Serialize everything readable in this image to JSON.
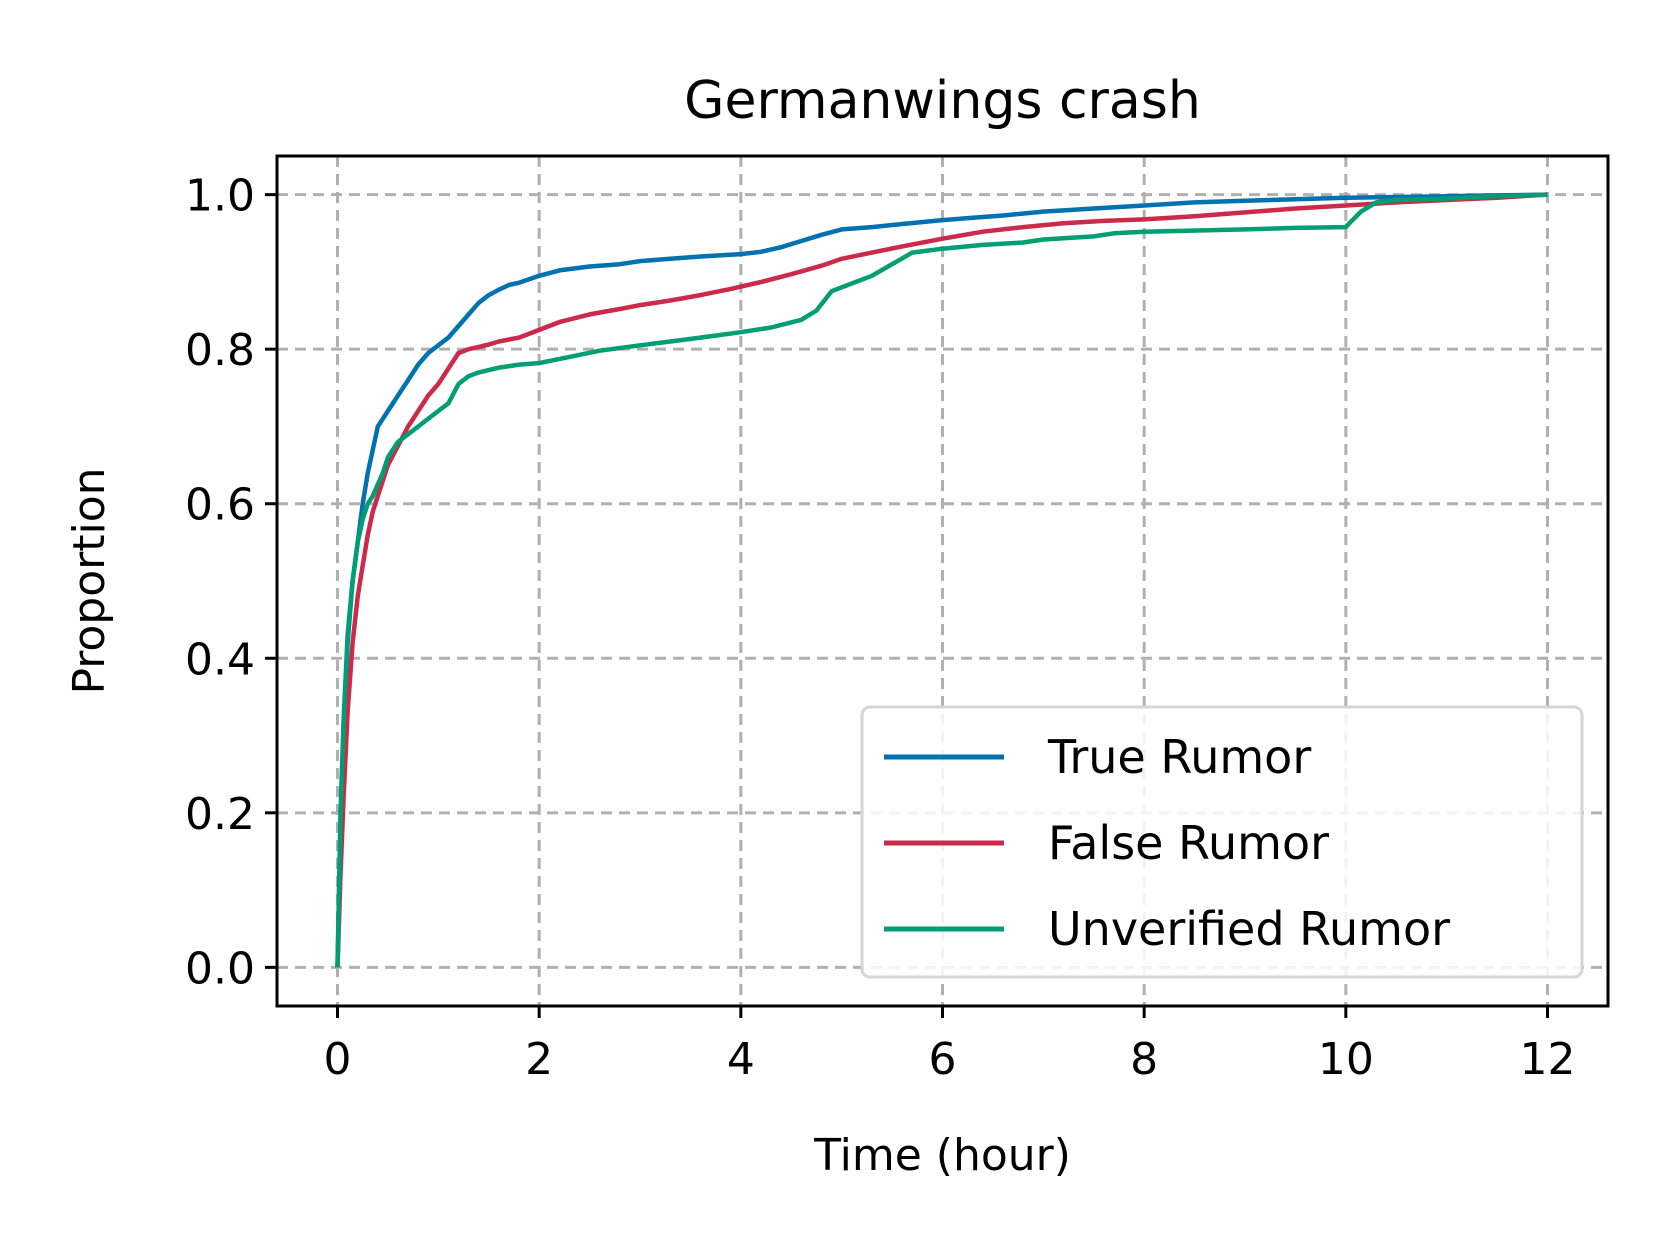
{
  "chart_data": {
    "type": "line",
    "title": "Germanwings crash",
    "xlabel": "Time (hour)",
    "ylabel": "Proportion",
    "xlim": [
      -0.6,
      12.6
    ],
    "ylim": [
      -0.05,
      1.05
    ],
    "xticks": [
      0,
      2,
      4,
      6,
      8,
      10,
      12
    ],
    "xtick_labels": [
      "0",
      "2",
      "4",
      "6",
      "8",
      "10",
      "12"
    ],
    "yticks": [
      0.0,
      0.2,
      0.4,
      0.6,
      0.8,
      1.0
    ],
    "ytick_labels": [
      "0.0",
      "0.2",
      "0.4",
      "0.6",
      "0.8",
      "1.0"
    ],
    "grid": true,
    "legend_position": "lower-right",
    "series": [
      {
        "name": "True Rumor",
        "color": "#0072b2",
        "x": [
          0,
          0.03,
          0.06,
          0.1,
          0.15,
          0.2,
          0.25,
          0.3,
          0.35,
          0.4,
          0.45,
          0.5,
          0.6,
          0.7,
          0.8,
          0.9,
          1.0,
          1.1,
          1.2,
          1.3,
          1.4,
          1.5,
          1.6,
          1.7,
          1.8,
          2.0,
          2.2,
          2.5,
          2.8,
          3.0,
          3.3,
          3.6,
          4.0,
          4.2,
          4.4,
          4.6,
          4.8,
          5.0,
          5.3,
          5.6,
          6.0,
          6.3,
          6.6,
          7.0,
          7.5,
          8.0,
          8.5,
          9.0,
          9.5,
          10.0,
          10.5,
          11.0,
          11.5,
          12.0
        ],
        "y": [
          0,
          0.18,
          0.3,
          0.42,
          0.5,
          0.55,
          0.6,
          0.64,
          0.67,
          0.7,
          0.71,
          0.72,
          0.74,
          0.76,
          0.78,
          0.795,
          0.805,
          0.815,
          0.83,
          0.845,
          0.86,
          0.87,
          0.877,
          0.883,
          0.886,
          0.895,
          0.902,
          0.907,
          0.91,
          0.914,
          0.917,
          0.92,
          0.923,
          0.926,
          0.932,
          0.94,
          0.948,
          0.955,
          0.958,
          0.962,
          0.967,
          0.97,
          0.973,
          0.978,
          0.982,
          0.986,
          0.99,
          0.992,
          0.994,
          0.996,
          0.997,
          0.998,
          0.999,
          1.0
        ]
      },
      {
        "name": "False Rumor",
        "color": "#cc2a4a",
        "x": [
          0,
          0.03,
          0.06,
          0.1,
          0.15,
          0.2,
          0.25,
          0.3,
          0.35,
          0.4,
          0.45,
          0.5,
          0.6,
          0.7,
          0.8,
          0.9,
          1.0,
          1.1,
          1.2,
          1.3,
          1.4,
          1.5,
          1.6,
          1.8,
          2.0,
          2.2,
          2.5,
          2.8,
          3.0,
          3.3,
          3.6,
          3.9,
          4.2,
          4.5,
          4.8,
          5.0,
          5.3,
          5.6,
          6.0,
          6.4,
          6.8,
          7.2,
          7.6,
          8.0,
          8.5,
          9.0,
          9.5,
          10.0,
          10.5,
          11.0,
          11.5,
          12.0
        ],
        "y": [
          0,
          0.12,
          0.22,
          0.33,
          0.42,
          0.48,
          0.52,
          0.56,
          0.59,
          0.61,
          0.63,
          0.65,
          0.675,
          0.7,
          0.72,
          0.74,
          0.755,
          0.775,
          0.795,
          0.8,
          0.803,
          0.806,
          0.81,
          0.815,
          0.825,
          0.835,
          0.845,
          0.852,
          0.857,
          0.863,
          0.87,
          0.878,
          0.887,
          0.897,
          0.908,
          0.917,
          0.925,
          0.933,
          0.943,
          0.952,
          0.958,
          0.963,
          0.966,
          0.968,
          0.972,
          0.977,
          0.982,
          0.986,
          0.99,
          0.993,
          0.996,
          1.0
        ]
      },
      {
        "name": "Unverified Rumor",
        "color": "#009e73",
        "x": [
          0,
          0.03,
          0.06,
          0.1,
          0.15,
          0.2,
          0.25,
          0.3,
          0.35,
          0.4,
          0.45,
          0.5,
          0.6,
          0.7,
          0.8,
          0.9,
          1.0,
          1.1,
          1.2,
          1.3,
          1.4,
          1.6,
          1.8,
          2.0,
          2.3,
          2.6,
          3.0,
          3.3,
          3.6,
          4.0,
          4.3,
          4.6,
          4.75,
          4.9,
          5.1,
          5.3,
          5.5,
          5.7,
          6.0,
          6.4,
          6.8,
          7.0,
          7.5,
          7.7,
          8.0,
          9.0,
          9.5,
          10.0,
          10.05,
          10.15,
          10.3,
          10.5,
          11.0,
          11.5,
          12.0
        ],
        "y": [
          0,
          0.2,
          0.32,
          0.43,
          0.5,
          0.55,
          0.58,
          0.6,
          0.61,
          0.625,
          0.64,
          0.66,
          0.68,
          0.69,
          0.7,
          0.71,
          0.72,
          0.73,
          0.755,
          0.765,
          0.77,
          0.776,
          0.78,
          0.782,
          0.79,
          0.798,
          0.805,
          0.81,
          0.815,
          0.822,
          0.828,
          0.838,
          0.85,
          0.875,
          0.885,
          0.895,
          0.91,
          0.925,
          0.93,
          0.935,
          0.938,
          0.942,
          0.946,
          0.95,
          0.952,
          0.955,
          0.957,
          0.958,
          0.965,
          0.978,
          0.99,
          0.993,
          0.995,
          0.998,
          1.0
        ]
      }
    ]
  }
}
